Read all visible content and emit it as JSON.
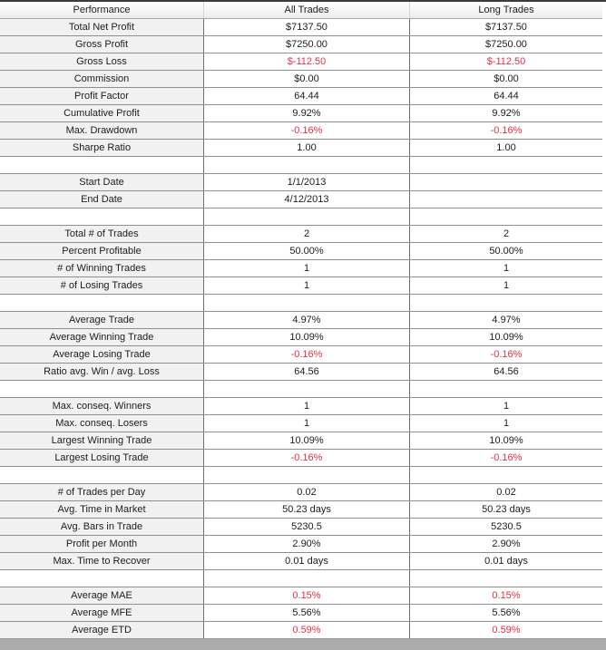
{
  "colors": {
    "negative_value": "#e0314a",
    "normal_value": "#1c1c1c",
    "label_cell_bg": "#f1f1f1",
    "bottom_strip_bg": "#ababab"
  },
  "table": {
    "columns": [
      "Performance",
      "All Trades",
      "Long Trades"
    ],
    "rows": [
      {
        "label": "Total Net Profit",
        "all_trades": "$7137.50",
        "long_trades": "$7137.50",
        "negative": false
      },
      {
        "label": "Gross Profit",
        "all_trades": "$7250.00",
        "long_trades": "$7250.00",
        "negative": false
      },
      {
        "label": "Gross Loss",
        "all_trades": "$-112.50",
        "long_trades": "$-112.50",
        "negative": true
      },
      {
        "label": "Commission",
        "all_trades": "$0.00",
        "long_trades": "$0.00",
        "negative": false
      },
      {
        "label": "Profit Factor",
        "all_trades": "64.44",
        "long_trades": "64.44",
        "negative": false
      },
      {
        "label": "Cumulative Profit",
        "all_trades": "9.92%",
        "long_trades": "9.92%",
        "negative": false
      },
      {
        "label": "Max. Drawdown",
        "all_trades": "-0.16%",
        "long_trades": "-0.16%",
        "negative": true
      },
      {
        "label": "Sharpe Ratio",
        "all_trades": "1.00",
        "long_trades": "1.00",
        "negative": false
      },
      {
        "spacer": true
      },
      {
        "label": "Start Date",
        "all_trades": "1/1/2013",
        "long_trades": "",
        "negative": false
      },
      {
        "label": "End Date",
        "all_trades": "4/12/2013",
        "long_trades": "",
        "negative": false
      },
      {
        "spacer": true
      },
      {
        "label": "Total # of Trades",
        "all_trades": "2",
        "long_trades": "2",
        "negative": false
      },
      {
        "label": "Percent Profitable",
        "all_trades": "50.00%",
        "long_trades": "50.00%",
        "negative": false
      },
      {
        "label": "# of Winning Trades",
        "all_trades": "1",
        "long_trades": "1",
        "negative": false
      },
      {
        "label": "# of Losing Trades",
        "all_trades": "1",
        "long_trades": "1",
        "negative": false
      },
      {
        "spacer": true
      },
      {
        "label": "Average Trade",
        "all_trades": "4.97%",
        "long_trades": "4.97%",
        "negative": false
      },
      {
        "label": "Average Winning Trade",
        "all_trades": "10.09%",
        "long_trades": "10.09%",
        "negative": false
      },
      {
        "label": "Average Losing Trade",
        "all_trades": "-0.16%",
        "long_trades": "-0.16%",
        "negative": true
      },
      {
        "label": "Ratio avg. Win / avg. Loss",
        "all_trades": "64.56",
        "long_trades": "64.56",
        "negative": false
      },
      {
        "spacer": true
      },
      {
        "label": "Max. conseq. Winners",
        "all_trades": "1",
        "long_trades": "1",
        "negative": false
      },
      {
        "label": "Max. conseq. Losers",
        "all_trades": "1",
        "long_trades": "1",
        "negative": false
      },
      {
        "label": "Largest Winning Trade",
        "all_trades": "10.09%",
        "long_trades": "10.09%",
        "negative": false
      },
      {
        "label": "Largest Losing Trade",
        "all_trades": "-0.16%",
        "long_trades": "-0.16%",
        "negative": true
      },
      {
        "spacer": true
      },
      {
        "label": "# of Trades per Day",
        "all_trades": "0.02",
        "long_trades": "0.02",
        "negative": false
      },
      {
        "label": "Avg. Time in Market",
        "all_trades": "50.23 days",
        "long_trades": "50.23 days",
        "negative": false
      },
      {
        "label": "Avg. Bars in Trade",
        "all_trades": "5230.5",
        "long_trades": "5230.5",
        "negative": false
      },
      {
        "label": "Profit per Month",
        "all_trades": "2.90%",
        "long_trades": "2.90%",
        "negative": false
      },
      {
        "label": "Max. Time to Recover",
        "all_trades": "0.01 days",
        "long_trades": "0.01 days",
        "negative": false
      },
      {
        "spacer": true
      },
      {
        "label": "Average MAE",
        "all_trades": "0.15%",
        "long_trades": "0.15%",
        "negative": true
      },
      {
        "label": "Average MFE",
        "all_trades": "5.56%",
        "long_trades": "5.56%",
        "negative": false
      },
      {
        "label": "Average ETD",
        "all_trades": "0.59%",
        "long_trades": "0.59%",
        "negative": true
      }
    ]
  }
}
